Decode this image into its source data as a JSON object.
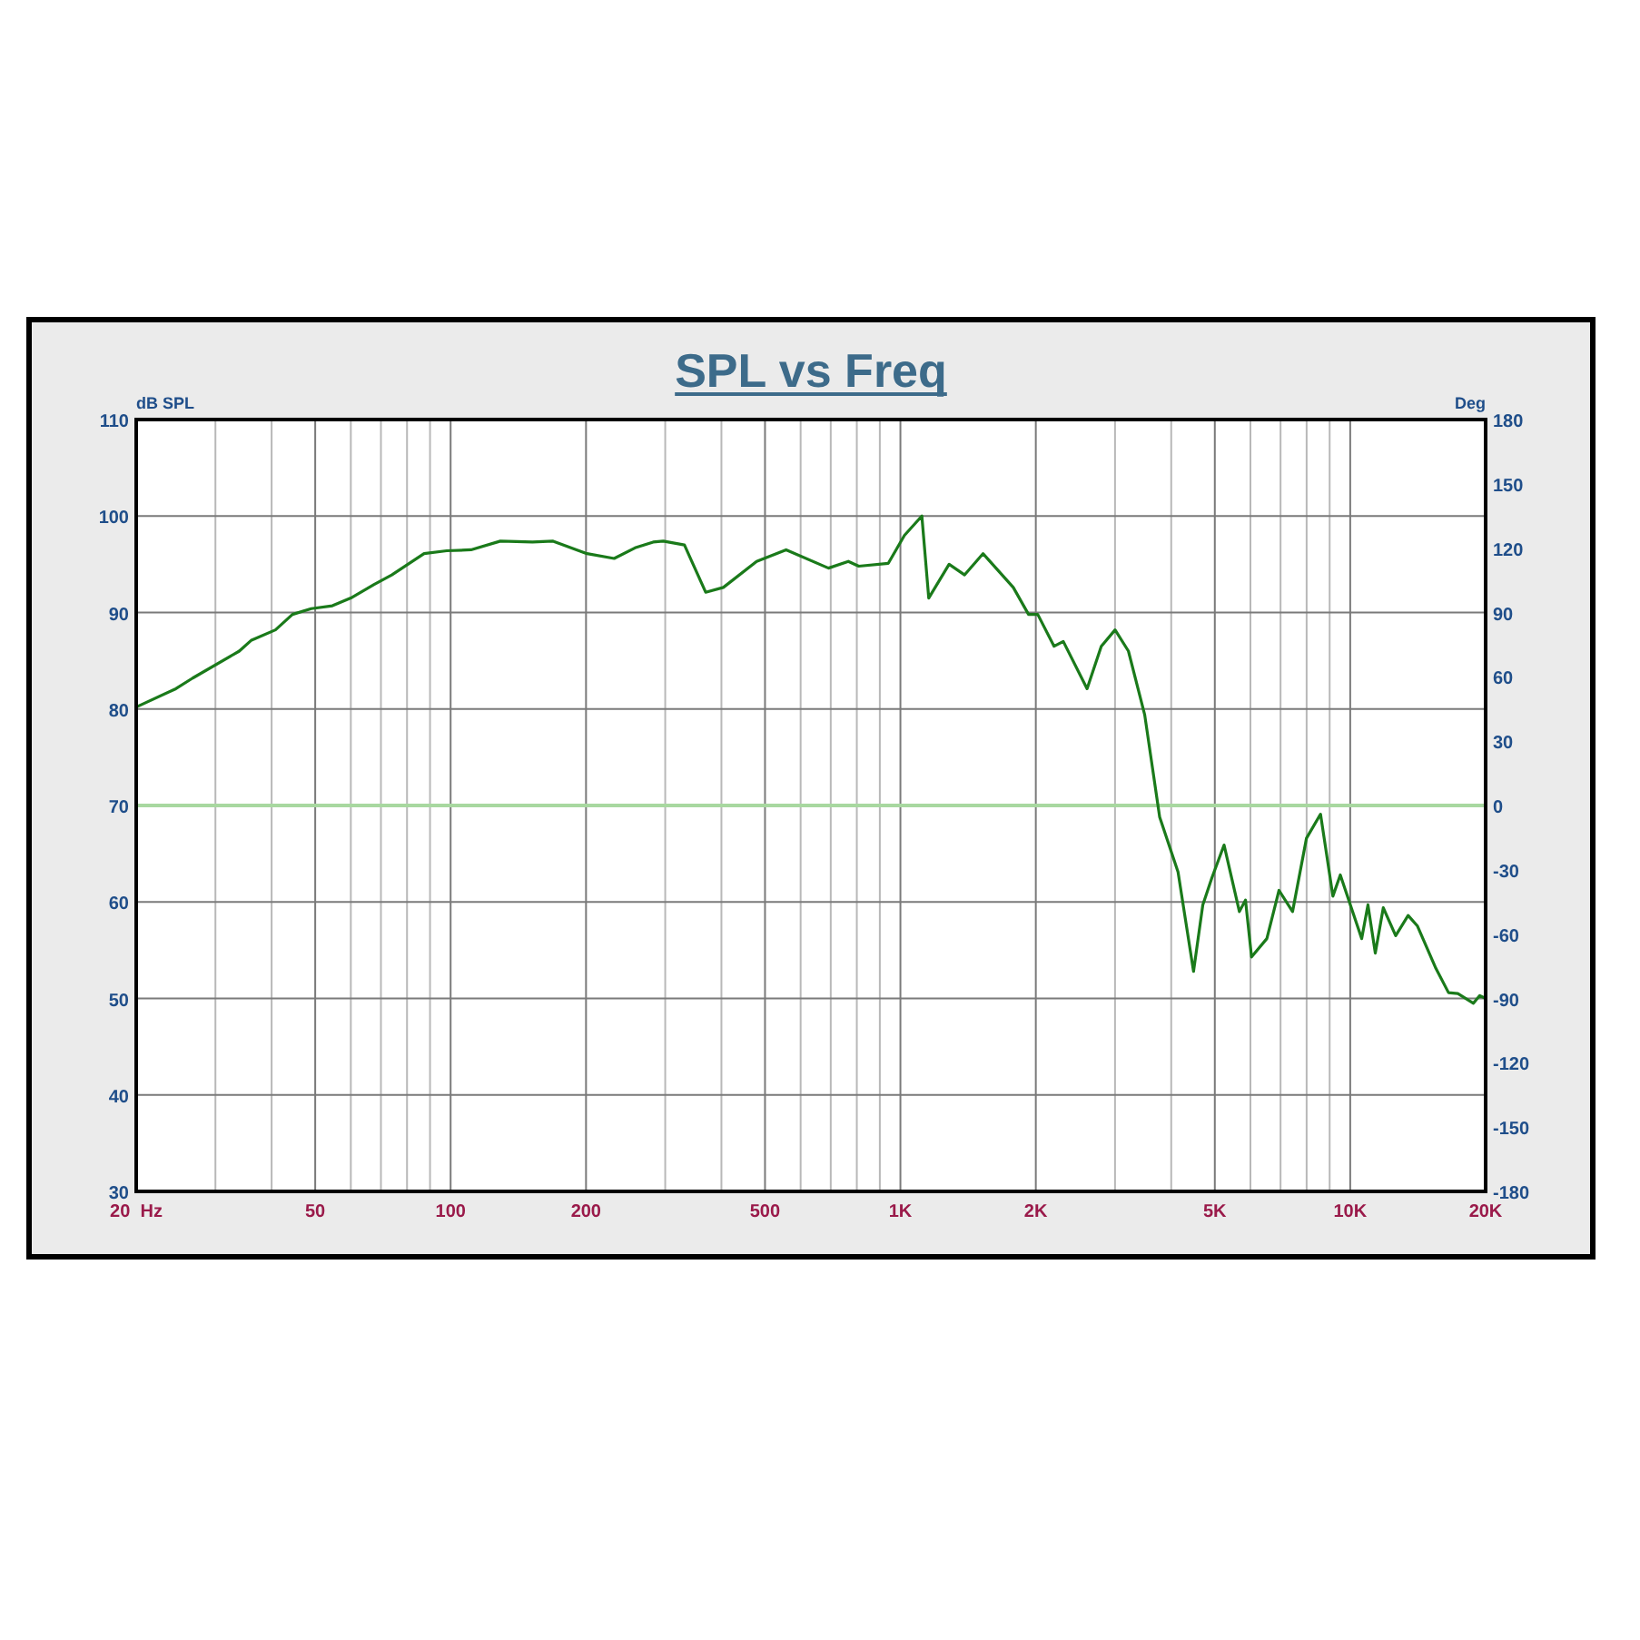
{
  "chart_data": {
    "type": "line",
    "title": "SPL vs Freq",
    "ylabel": "dB SPL",
    "y2label": "Deg",
    "log": "x",
    "grid": "xy",
    "xlim": [
      20,
      20000
    ],
    "xticks": [
      {
        "value": 20,
        "label": "20  Hz"
      },
      {
        "value": 30,
        "label": null
      },
      {
        "value": 40,
        "label": null
      },
      50,
      {
        "value": 60,
        "label": null
      },
      {
        "value": 70,
        "label": null
      },
      {
        "value": 80,
        "label": null
      },
      {
        "value": 90,
        "label": null
      },
      100,
      200,
      {
        "value": 300,
        "label": null
      },
      {
        "value": 400,
        "label": null
      },
      500,
      {
        "value": 600,
        "label": null
      },
      {
        "value": 700,
        "label": null
      },
      {
        "value": 800,
        "label": null
      },
      {
        "value": 900,
        "label": null
      },
      {
        "value": 1000,
        "label": "1K"
      },
      {
        "value": 2000,
        "label": "2K"
      },
      {
        "value": 3000,
        "label": null
      },
      {
        "value": 4000,
        "label": null
      },
      {
        "value": 5000,
        "label": "5K"
      },
      {
        "value": 6000,
        "label": null
      },
      {
        "value": 7000,
        "label": null
      },
      {
        "value": 8000,
        "label": null
      },
      {
        "value": 9000,
        "label": null
      },
      {
        "value": 10000,
        "label": "10K"
      },
      {
        "value": 20000,
        "label": "20K"
      }
    ],
    "ylim": [
      30,
      110
    ],
    "yticks": [
      30,
      40,
      50,
      60,
      70,
      80,
      90,
      100,
      110
    ],
    "y2lim": [
      -180,
      180
    ],
    "y2ticks": [
      -180,
      -150,
      -120,
      -90,
      -60,
      -30,
      0,
      30,
      60,
      90,
      120,
      150,
      180
    ],
    "ref_lines": [
      {
        "axis": "y2",
        "value": 0,
        "color": "#a8d8a0"
      }
    ],
    "series": [
      {
        "color": "#1a7a1a",
        "x": [
          20,
          24.5,
          26.7,
          33.9,
          36,
          40.8,
          44.5,
          49,
          54.6,
          60,
          67.6,
          74,
          87.3,
          98,
          111,
          129,
          152,
          169,
          201,
          231,
          257,
          282,
          297,
          331,
          369,
          404,
          479,
          557,
          692,
          766,
          808,
          940,
          1021,
          1116,
          1156,
          1283,
          1389,
          1526,
          1782,
          1927,
          2020,
          2196,
          2302,
          2600,
          2796,
          3001,
          3213,
          3492,
          3770,
          4142,
          4484,
          4702,
          4925,
          5243,
          5670,
          5850,
          6035,
          6526,
          6945,
          7444,
          7993,
          8590,
          9151,
          9505,
          10605,
          10950,
          11370,
          11845,
          12620,
          13450,
          14110,
          15510,
          16540,
          17350,
          18790,
          19410,
          20000
        ],
        "values": [
          80.2,
          82.1,
          83.2,
          86.0,
          87.1,
          88.2,
          89.8,
          90.4,
          90.7,
          91.5,
          92.9,
          93.9,
          96.1,
          96.4,
          96.5,
          97.4,
          97.3,
          97.4,
          96.1,
          95.6,
          96.7,
          97.3,
          97.4,
          97.0,
          92.1,
          92.6,
          95.3,
          96.5,
          94.6,
          95.3,
          94.8,
          95.1,
          98.0,
          100.0,
          91.5,
          95.0,
          93.9,
          96.1,
          92.6,
          89.8,
          89.8,
          86.5,
          87.0,
          82.1,
          86.5,
          88.2,
          86.0,
          79.4,
          68.8,
          63.1,
          52.8,
          59.7,
          62.5,
          65.9,
          59.0,
          60.2,
          54.3,
          56.2,
          61.2,
          59.0,
          66.6,
          69.1,
          60.6,
          62.8,
          56.2,
          59.7,
          54.7,
          59.4,
          56.5,
          58.6,
          57.5,
          53.1,
          50.6,
          50.5,
          49.5,
          50.3,
          50.0
        ]
      }
    ]
  }
}
